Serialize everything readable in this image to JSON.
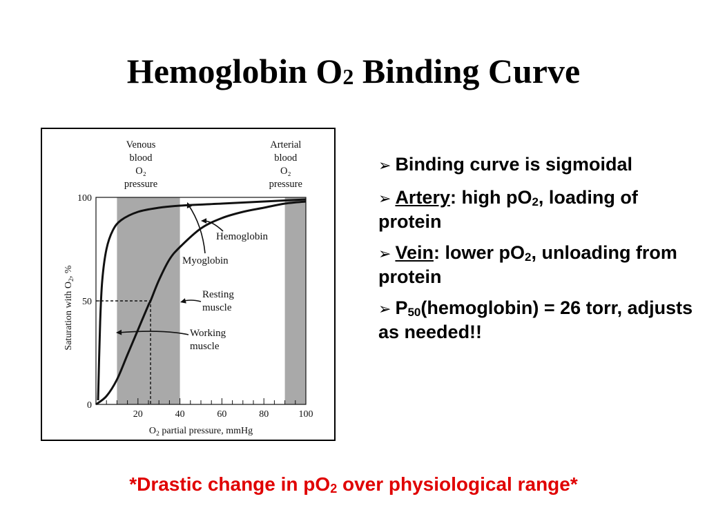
{
  "slide": {
    "title": {
      "main": "Hemoglobin O",
      "sub": "2",
      "rest": " Binding Curve"
    },
    "bullets": [
      {
        "parts": [
          {
            "text": "Binding curve is sigmoidal"
          }
        ]
      },
      {
        "parts": [
          {
            "text": "Artery",
            "underline": true
          },
          {
            "text": ": high pO"
          },
          {
            "text": "2",
            "sub": true
          },
          {
            "text": ", loading of protein"
          }
        ]
      },
      {
        "parts": [
          {
            "text": "Vein",
            "underline": true
          },
          {
            "text": ": lower pO"
          },
          {
            "text": "2",
            "sub": true
          },
          {
            "text": ", unloading from protein"
          }
        ]
      },
      {
        "parts": [
          {
            "text": "P"
          },
          {
            "text": "50",
            "sub": true
          },
          {
            "text": "(hemoglobin) = 26 torr, adjusts as needed!!"
          }
        ]
      }
    ],
    "bullet_marker_icon": "arrowhead-bullet-icon",
    "footnote": {
      "before": "*Drastic change in pO",
      "sub": "2",
      "after": " over physiological range*"
    },
    "footnote_color": "#e00000"
  },
  "chart_data": {
    "type": "line",
    "x_range": [
      0,
      100
    ],
    "y_range": [
      0,
      100
    ],
    "x_ticks": [
      20,
      40,
      60,
      80,
      100
    ],
    "y_ticks": [
      0,
      50,
      100
    ],
    "xlabel": {
      "before": "O",
      "sub": "2",
      "after": " partial pressure, mmHg"
    },
    "ylabel": {
      "before": "Saturation with O",
      "sub": "2",
      "after": ", %"
    },
    "series": [
      {
        "key": "myoglobin",
        "points": [
          [
            1,
            2
          ],
          [
            2,
            40
          ],
          [
            3,
            60
          ],
          [
            5,
            75
          ],
          [
            8,
            84
          ],
          [
            12,
            89
          ],
          [
            20,
            93
          ],
          [
            30,
            95
          ],
          [
            40,
            96
          ],
          [
            60,
            97
          ],
          [
            80,
            98
          ],
          [
            100,
            99
          ]
        ]
      },
      {
        "key": "hemoglobin",
        "points": [
          [
            0,
            0
          ],
          [
            5,
            4
          ],
          [
            10,
            12
          ],
          [
            15,
            24
          ],
          [
            20,
            36
          ],
          [
            25,
            48
          ],
          [
            26,
            50
          ],
          [
            30,
            60
          ],
          [
            35,
            70
          ],
          [
            40,
            76
          ],
          [
            50,
            85
          ],
          [
            60,
            90
          ],
          [
            70,
            93
          ],
          [
            80,
            95
          ],
          [
            90,
            97
          ],
          [
            100,
            98
          ]
        ]
      }
    ],
    "shaded_bands": [
      {
        "key": "venous",
        "x": [
          10,
          40
        ],
        "label": [
          "Venous",
          "blood",
          "O₂",
          "pressure"
        ]
      },
      {
        "key": "arterial",
        "x": [
          90,
          100
        ],
        "label": [
          "Arterial",
          "blood",
          "O₂",
          "pressure"
        ]
      }
    ],
    "p50_reference": {
      "x": 26,
      "y": 50
    },
    "annotations": [
      {
        "key": "hemoglobin",
        "text": [
          "Hemoglobin"
        ]
      },
      {
        "key": "myoglobin",
        "text": [
          "Myoglobin"
        ]
      },
      {
        "key": "resting",
        "text": [
          "Resting",
          "muscle"
        ]
      },
      {
        "key": "working",
        "text": [
          "Working",
          "muscle"
        ]
      }
    ],
    "band_color": "#a9a9a9"
  }
}
